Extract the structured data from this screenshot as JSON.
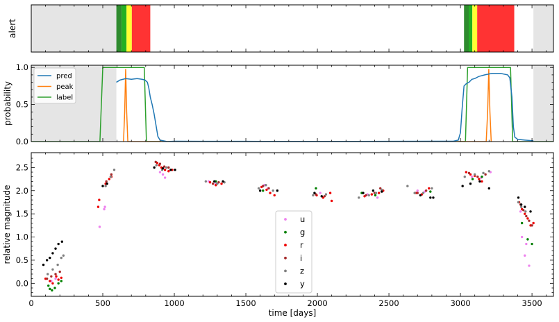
{
  "chart_data": [
    {
      "type": "area",
      "panel": "alert",
      "ylabel": "alert",
      "xlim": [
        0,
        3650
      ],
      "grey_regions": [
        [
          0,
          595
        ],
        [
          3510,
          3650
        ]
      ],
      "alert_segments": [
        {
          "x0": 595,
          "x1": 632,
          "color": "#2e8b2e"
        },
        {
          "x0": 632,
          "x1": 666,
          "color": "#22b022"
        },
        {
          "x0": 666,
          "x1": 703,
          "color": "#ffff33"
        },
        {
          "x0": 703,
          "x1": 832,
          "color": "#ff3333"
        },
        {
          "x0": 3025,
          "x1": 3058,
          "color": "#2e8b2e"
        },
        {
          "x0": 3058,
          "x1": 3083,
          "color": "#22b022"
        },
        {
          "x0": 3083,
          "x1": 3117,
          "color": "#ffff33"
        },
        {
          "x0": 3117,
          "x1": 3376,
          "color": "#ff3333"
        }
      ]
    },
    {
      "type": "line",
      "panel": "probability",
      "ylabel": "probability",
      "xlim": [
        0,
        3650
      ],
      "ylim": [
        0,
        1.03
      ],
      "yticks": [
        "0.0",
        "0.5",
        "1.0"
      ],
      "grey_regions": [
        [
          0,
          595
        ],
        [
          3510,
          3650
        ]
      ],
      "legend": {
        "position": "top-left",
        "entries": [
          "pred",
          "peak",
          "label"
        ]
      },
      "series": [
        {
          "name": "pred",
          "color": "#1f77b4",
          "points": [
            [
              595,
              0.8
            ],
            [
              620,
              0.83
            ],
            [
              660,
              0.85
            ],
            [
              700,
              0.84
            ],
            [
              740,
              0.85
            ],
            [
              775,
              0.84
            ],
            [
              795,
              0.83
            ],
            [
              812,
              0.8
            ],
            [
              822,
              0.72
            ],
            [
              832,
              0.6
            ],
            [
              845,
              0.5
            ],
            [
              858,
              0.38
            ],
            [
              872,
              0.22
            ],
            [
              885,
              0.07
            ],
            [
              900,
              0.02
            ],
            [
              950,
              0.0
            ],
            [
              1000,
              0.005
            ],
            [
              1200,
              0.003
            ],
            [
              1500,
              0.003
            ],
            [
              2000,
              0.002
            ],
            [
              2500,
              0.003
            ],
            [
              2950,
              0.005
            ],
            [
              2985,
              0.02
            ],
            [
              3000,
              0.12
            ],
            [
              3012,
              0.45
            ],
            [
              3025,
              0.75
            ],
            [
              3040,
              0.78
            ],
            [
              3060,
              0.8
            ],
            [
              3080,
              0.84
            ],
            [
              3100,
              0.85
            ],
            [
              3130,
              0.88
            ],
            [
              3170,
              0.9
            ],
            [
              3220,
              0.92
            ],
            [
              3280,
              0.92
            ],
            [
              3330,
              0.9
            ],
            [
              3345,
              0.86
            ],
            [
              3360,
              0.6
            ],
            [
              3370,
              0.2
            ],
            [
              3380,
              0.06
            ],
            [
              3400,
              0.03
            ],
            [
              3450,
              0.02
            ],
            [
              3480,
              0.015
            ],
            [
              3510,
              0.01
            ]
          ]
        },
        {
          "name": "peak",
          "color": "#ff7f0e",
          "points": [
            [
              645,
              0
            ],
            [
              653,
              0.4
            ],
            [
              660,
              0.98
            ],
            [
              667,
              0.4
            ],
            [
              675,
              0
            ],
            [
              3180,
              0
            ],
            [
              3190,
              0.4
            ],
            [
              3198,
              0.98
            ],
            [
              3206,
              0.4
            ],
            [
              3215,
              0
            ]
          ]
        },
        {
          "name": "label",
          "color": "#2ca02c",
          "points": [
            [
              0,
              0
            ],
            [
              480,
              0
            ],
            [
              500,
              1.0
            ],
            [
              790,
              1.0
            ],
            [
              805,
              0
            ],
            [
              3035,
              0
            ],
            [
              3050,
              1.0
            ],
            [
              3350,
              1.0
            ],
            [
              3365,
              0
            ],
            [
              3650,
              0
            ]
          ]
        }
      ]
    },
    {
      "type": "scatter",
      "panel": "magnitude",
      "xlabel": "time [days]",
      "ylabel": "relative magnitude",
      "xlim": [
        0,
        3650
      ],
      "ylim": [
        -0.28,
        2.82
      ],
      "xticks": [
        "0",
        "500",
        "1000",
        "1500",
        "2000",
        "2500",
        "3000",
        "3500"
      ],
      "yticks": [
        "0.0",
        "0.5",
        "1.0",
        "1.5",
        "2.0",
        "2.5"
      ],
      "legend": {
        "position": "bottom-center",
        "entries": [
          "u",
          "g",
          "r",
          "i",
          "z",
          "y"
        ]
      },
      "series": [
        {
          "name": "u",
          "color": "#ee82ee",
          "points": [
            [
              140,
              0.05
            ],
            [
              170,
              0.1
            ],
            [
              478,
              1.22
            ],
            [
              510,
              1.6
            ],
            [
              515,
              1.65
            ],
            [
              900,
              2.4
            ],
            [
              920,
              2.35
            ],
            [
              935,
              2.28
            ],
            [
              1240,
              2.2
            ],
            [
              1290,
              2.15
            ],
            [
              1630,
              2.12
            ],
            [
              1655,
              2.05
            ],
            [
              2020,
              1.95
            ],
            [
              2350,
              1.92
            ],
            [
              2420,
              1.85
            ],
            [
              2700,
              2.0
            ],
            [
              2750,
              1.98
            ],
            [
              3080,
              2.3
            ],
            [
              3145,
              2.28
            ],
            [
              3210,
              2.4
            ],
            [
              3420,
              1.55
            ],
            [
              3430,
              1.0
            ],
            [
              3450,
              0.6
            ],
            [
              3460,
              0.85
            ],
            [
              3480,
              0.38
            ]
          ]
        },
        {
          "name": "g",
          "color": "#008000",
          "points": [
            [
              120,
              -0.05
            ],
            [
              130,
              -0.12
            ],
            [
              145,
              -0.15
            ],
            [
              165,
              -0.1
            ],
            [
              190,
              0.0
            ],
            [
              210,
              0.05
            ],
            [
              1290,
              2.2
            ],
            [
              1620,
              2.0
            ],
            [
              1990,
              2.05
            ],
            [
              2310,
              1.95
            ],
            [
              2405,
              1.9
            ],
            [
              2790,
              1.98
            ],
            [
              3085,
              2.25
            ],
            [
              3150,
              2.3
            ],
            [
              3430,
              1.3
            ],
            [
              3470,
              0.95
            ],
            [
              3500,
              0.85
            ]
          ]
        },
        {
          "name": "r",
          "color": "#ee0000",
          "points": [
            [
              100,
              0.1
            ],
            [
              130,
              0.05
            ],
            [
              150,
              0.0
            ],
            [
              175,
              0.15
            ],
            [
              190,
              0.08
            ],
            [
              210,
              0.12
            ],
            [
              468,
              1.65
            ],
            [
              475,
              1.8
            ],
            [
              520,
              2.15
            ],
            [
              545,
              2.25
            ],
            [
              560,
              2.3
            ],
            [
              880,
              2.6
            ],
            [
              895,
              2.55
            ],
            [
              910,
              2.5
            ],
            [
              935,
              2.45
            ],
            [
              960,
              2.42
            ],
            [
              985,
              2.45
            ],
            [
              1250,
              2.18
            ],
            [
              1290,
              2.12
            ],
            [
              1330,
              2.15
            ],
            [
              1610,
              2.08
            ],
            [
              1645,
              2.02
            ],
            [
              1670,
              1.95
            ],
            [
              1700,
              1.9
            ],
            [
              1995,
              1.9
            ],
            [
              2040,
              1.85
            ],
            [
              2090,
              1.95
            ],
            [
              2100,
              1.78
            ],
            [
              2330,
              1.88
            ],
            [
              2380,
              1.92
            ],
            [
              2430,
              1.95
            ],
            [
              2460,
              2.0
            ],
            [
              2690,
              1.95
            ],
            [
              2730,
              1.92
            ],
            [
              2780,
              2.05
            ],
            [
              3040,
              2.4
            ],
            [
              3070,
              2.35
            ],
            [
              3100,
              2.32
            ],
            [
              3130,
              2.25
            ],
            [
              3150,
              2.2
            ],
            [
              3410,
              1.75
            ],
            [
              3430,
              1.6
            ],
            [
              3450,
              1.5
            ],
            [
              3470,
              1.4
            ],
            [
              3490,
              1.25
            ],
            [
              3510,
              1.3
            ]
          ]
        },
        {
          "name": "i",
          "color": "#a52a2a",
          "points": [
            [
              110,
              0.1
            ],
            [
              140,
              0.15
            ],
            [
              170,
              0.2
            ],
            [
              200,
              0.25
            ],
            [
              525,
              2.2
            ],
            [
              560,
              2.35
            ],
            [
              870,
              2.62
            ],
            [
              900,
              2.58
            ],
            [
              930,
              2.52
            ],
            [
              960,
              2.5
            ],
            [
              1270,
              2.15
            ],
            [
              1310,
              2.18
            ],
            [
              1620,
              2.1
            ],
            [
              1660,
              2.05
            ],
            [
              1990,
              1.92
            ],
            [
              2050,
              1.88
            ],
            [
              2340,
              1.9
            ],
            [
              2400,
              1.95
            ],
            [
              2440,
              2.05
            ],
            [
              2700,
              1.95
            ],
            [
              2760,
              2.0
            ],
            [
              3060,
              2.38
            ],
            [
              3120,
              2.3
            ],
            [
              3175,
              2.35
            ],
            [
              3420,
              1.7
            ],
            [
              3440,
              1.58
            ],
            [
              3460,
              1.45
            ],
            [
              3480,
              1.35
            ],
            [
              3500,
              1.25
            ]
          ]
        },
        {
          "name": "z",
          "color": "#808080",
          "points": [
            [
              115,
              0.2
            ],
            [
              150,
              0.3
            ],
            [
              185,
              0.4
            ],
            [
              210,
              0.55
            ],
            [
              225,
              0.6
            ],
            [
              520,
              2.1
            ],
            [
              555,
              2.3
            ],
            [
              580,
              2.45
            ],
            [
              875,
              2.55
            ],
            [
              915,
              2.45
            ],
            [
              945,
              2.5
            ],
            [
              1220,
              2.2
            ],
            [
              1300,
              2.15
            ],
            [
              1350,
              2.18
            ],
            [
              1590,
              2.05
            ],
            [
              1640,
              2.12
            ],
            [
              1690,
              2.0
            ],
            [
              1970,
              1.9
            ],
            [
              2060,
              1.92
            ],
            [
              2290,
              1.85
            ],
            [
              2360,
              1.9
            ],
            [
              2410,
              1.95
            ],
            [
              2450,
              2.02
            ],
            [
              2630,
              2.1
            ],
            [
              2680,
              1.95
            ],
            [
              2740,
              1.95
            ],
            [
              2800,
              2.05
            ],
            [
              3030,
              2.3
            ],
            [
              3100,
              2.35
            ],
            [
              3160,
              2.38
            ],
            [
              3200,
              2.42
            ],
            [
              3405,
              1.75
            ],
            [
              3425,
              1.65
            ],
            [
              3455,
              1.55
            ]
          ]
        },
        {
          "name": "y",
          "color": "#000000",
          "points": [
            [
              85,
              0.4
            ],
            [
              110,
              0.5
            ],
            [
              130,
              0.55
            ],
            [
              150,
              0.65
            ],
            [
              170,
              0.75
            ],
            [
              190,
              0.85
            ],
            [
              215,
              0.9
            ],
            [
              500,
              2.1
            ],
            [
              530,
              2.15
            ],
            [
              860,
              2.5
            ],
            [
              920,
              2.48
            ],
            [
              975,
              2.45
            ],
            [
              1005,
              2.45
            ],
            [
              1280,
              2.2
            ],
            [
              1340,
              2.2
            ],
            [
              1600,
              2.0
            ],
            [
              1720,
              2.0
            ],
            [
              1980,
              1.95
            ],
            [
              2030,
              1.88
            ],
            [
              2320,
              1.95
            ],
            [
              2390,
              2.0
            ],
            [
              2450,
              1.98
            ],
            [
              2720,
              1.9
            ],
            [
              2790,
              1.85
            ],
            [
              2810,
              1.85
            ],
            [
              3015,
              2.1
            ],
            [
              3070,
              2.15
            ],
            [
              3135,
              2.2
            ],
            [
              3200,
              2.05
            ],
            [
              3405,
              1.85
            ],
            [
              3425,
              1.7
            ],
            [
              3450,
              1.65
            ],
            [
              3490,
              1.55
            ]
          ]
        }
      ]
    }
  ]
}
